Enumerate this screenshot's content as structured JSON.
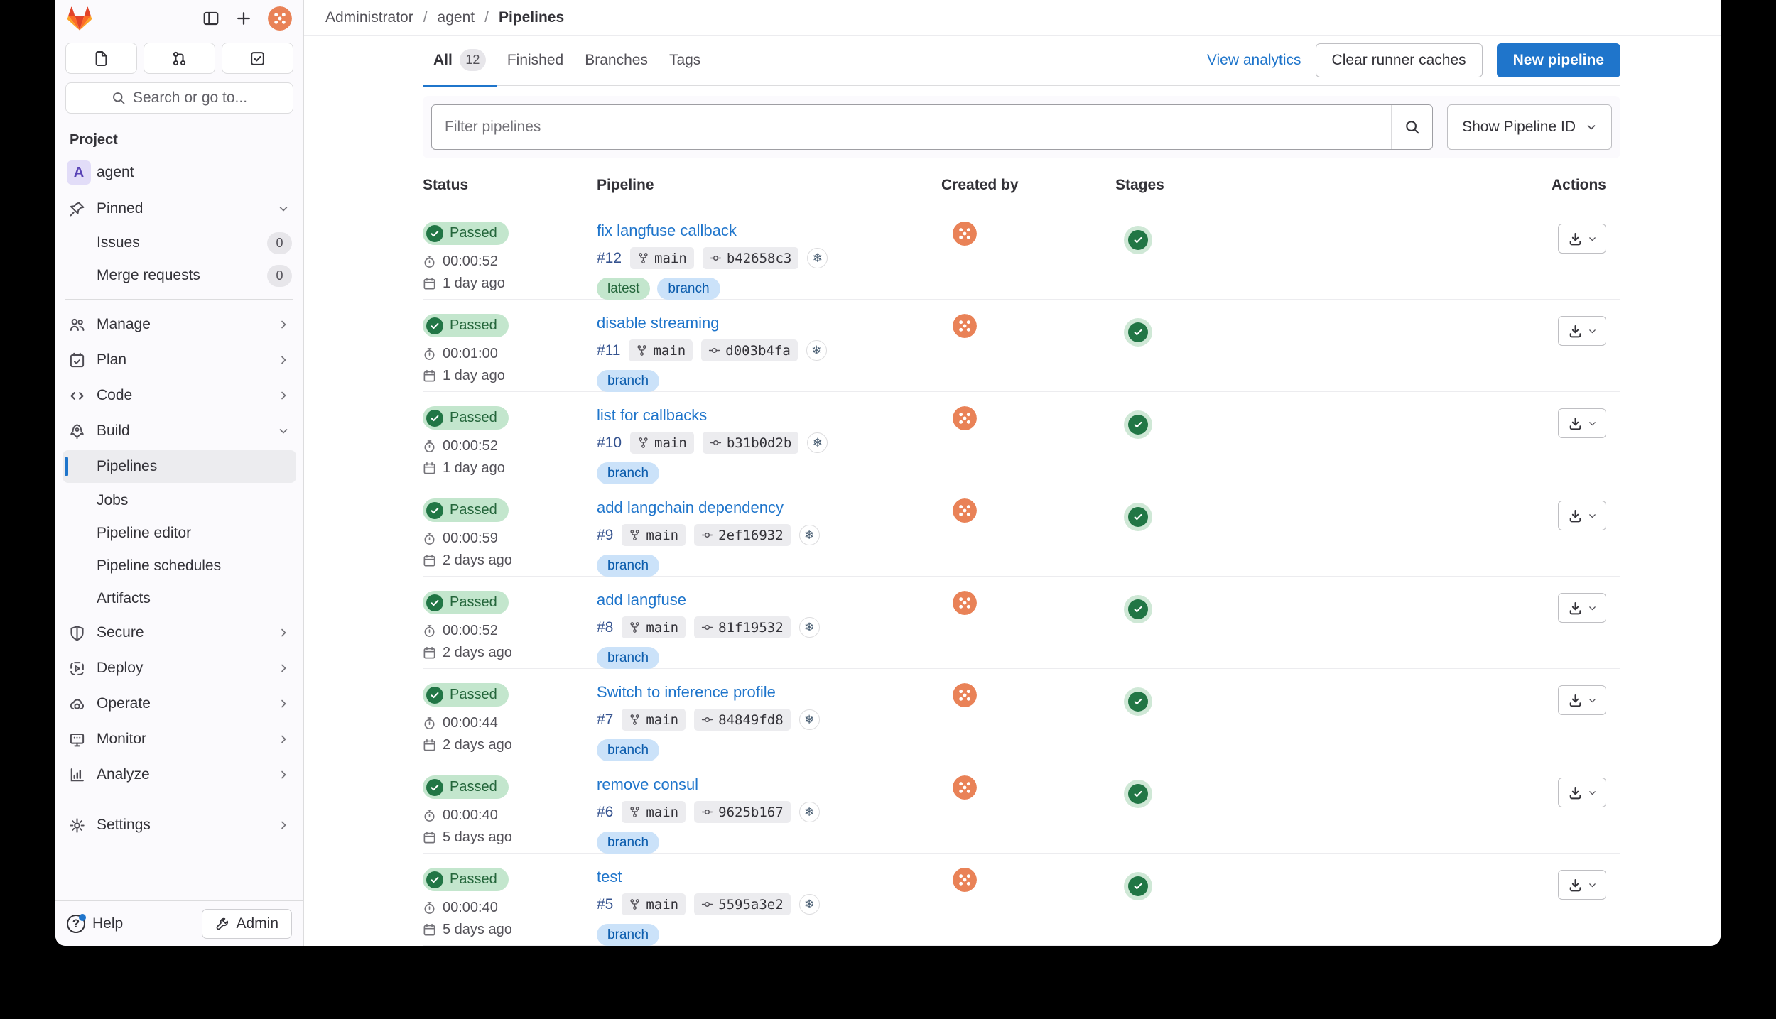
{
  "sidebar": {
    "search_placeholder": "Search or go to...",
    "section_label": "Project",
    "project": {
      "initial": "A",
      "name": "agent"
    },
    "pinned": {
      "label": "Pinned",
      "items": [
        {
          "label": "Issues",
          "count": "0"
        },
        {
          "label": "Merge requests",
          "count": "0"
        }
      ]
    },
    "nav": [
      {
        "label": "Manage"
      },
      {
        "label": "Plan"
      },
      {
        "label": "Code"
      },
      {
        "label": "Build"
      }
    ],
    "build_children": [
      {
        "label": "Pipelines",
        "active": true
      },
      {
        "label": "Jobs"
      },
      {
        "label": "Pipeline editor"
      },
      {
        "label": "Pipeline schedules"
      },
      {
        "label": "Artifacts"
      }
    ],
    "nav2": [
      {
        "label": "Secure"
      },
      {
        "label": "Deploy"
      },
      {
        "label": "Operate"
      },
      {
        "label": "Monitor"
      },
      {
        "label": "Analyze"
      }
    ],
    "settings_label": "Settings",
    "footer": {
      "help": "Help",
      "admin": "Admin"
    }
  },
  "breadcrumb": {
    "items": [
      "Administrator",
      "agent",
      "Pipelines"
    ],
    "separator": "/"
  },
  "tabs": [
    {
      "label": "All",
      "count": "12",
      "active": true
    },
    {
      "label": "Finished"
    },
    {
      "label": "Branches"
    },
    {
      "label": "Tags"
    }
  ],
  "toolbar": {
    "view_analytics": "View analytics",
    "clear_caches": "Clear runner caches",
    "new_pipeline": "New pipeline"
  },
  "filter": {
    "placeholder": "Filter pipelines",
    "pipeline_id_toggle": "Show Pipeline ID"
  },
  "icons": {
    "commit_author_glyph": "❄"
  },
  "colors": {
    "primary_blue": "#1f75cb",
    "success_bg": "#c3e6cd",
    "success_text": "#24663b",
    "success_icon": "#217645",
    "info_bg": "#cbe2f9",
    "info_text": "#0b5cad",
    "avatar_orange": "#e98257"
  },
  "table": {
    "headers": [
      "Status",
      "Pipeline",
      "Created by",
      "Stages",
      "Actions"
    ],
    "rows": [
      {
        "status": "Passed",
        "duration": "00:00:52",
        "age": "1 day ago",
        "title": "fix langfuse callback",
        "id": "#12",
        "branch": "main",
        "sha": "b42658c3",
        "labels": [
          "latest",
          "branch"
        ]
      },
      {
        "status": "Passed",
        "duration": "00:01:00",
        "age": "1 day ago",
        "title": "disable streaming",
        "id": "#11",
        "branch": "main",
        "sha": "d003b4fa",
        "labels": [
          "branch"
        ]
      },
      {
        "status": "Passed",
        "duration": "00:00:52",
        "age": "1 day ago",
        "title": "list for callbacks",
        "id": "#10",
        "branch": "main",
        "sha": "b31b0d2b",
        "labels": [
          "branch"
        ]
      },
      {
        "status": "Passed",
        "duration": "00:00:59",
        "age": "2 days ago",
        "title": "add langchain dependency",
        "id": "#9",
        "branch": "main",
        "sha": "2ef16932",
        "labels": [
          "branch"
        ]
      },
      {
        "status": "Passed",
        "duration": "00:00:52",
        "age": "2 days ago",
        "title": "add langfuse",
        "id": "#8",
        "branch": "main",
        "sha": "81f19532",
        "labels": [
          "branch"
        ]
      },
      {
        "status": "Passed",
        "duration": "00:00:44",
        "age": "2 days ago",
        "title": "Switch to inference profile",
        "id": "#7",
        "branch": "main",
        "sha": "84849fd8",
        "labels": [
          "branch"
        ]
      },
      {
        "status": "Passed",
        "duration": "00:00:40",
        "age": "5 days ago",
        "title": "remove consul",
        "id": "#6",
        "branch": "main",
        "sha": "9625b167",
        "labels": [
          "branch"
        ]
      },
      {
        "status": "Passed",
        "duration": "00:00:40",
        "age": "5 days ago",
        "title": "test",
        "id": "#5",
        "branch": "main",
        "sha": "5595a3e2",
        "labels": [
          "branch"
        ]
      }
    ]
  }
}
